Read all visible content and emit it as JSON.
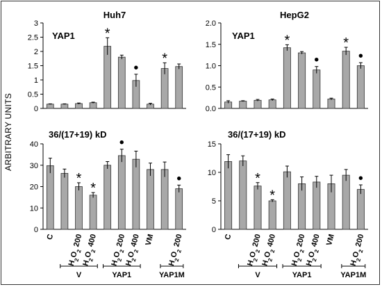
{
  "y_axis_label": "ARBITRARY UNITS",
  "colors": {
    "bar_fill": "#a8a8a8",
    "bar_stroke": "#333333",
    "axis": "#000000"
  },
  "categories": [
    "C",
    "",
    "H2O2 200",
    "H2O2 400",
    "",
    "H2O2 200",
    "H2O2 400",
    "VM",
    "",
    "H2O2 200"
  ],
  "category_parts": [
    {
      "base": "C",
      "sub": "",
      "tail": ""
    },
    {
      "base": "",
      "sub": "",
      "tail": ""
    },
    {
      "base": "H",
      "sub": "2",
      "mid": "O",
      "sub2": "2",
      "tail": " 200"
    },
    {
      "base": "H",
      "sub": "2",
      "mid": "O",
      "sub2": "2",
      "tail": " 400"
    },
    {
      "base": "",
      "sub": "",
      "tail": ""
    },
    {
      "base": "H",
      "sub": "2",
      "mid": "O",
      "sub2": "2",
      "tail": " 200"
    },
    {
      "base": "H",
      "sub": "2",
      "mid": "O",
      "sub2": "2",
      "tail": " 400"
    },
    {
      "base": "VM",
      "sub": "",
      "tail": ""
    },
    {
      "base": "",
      "sub": "",
      "tail": ""
    },
    {
      "base": "H",
      "sub": "2",
      "mid": "O",
      "sub2": "2",
      "tail": " 200"
    }
  ],
  "groups": [
    {
      "label": "V",
      "from": 1,
      "to": 3
    },
    {
      "label": "YAP1",
      "from": 4,
      "to": 6
    },
    {
      "label": "YAP1M",
      "from": 8,
      "to": 9
    }
  ],
  "chart_data": [
    {
      "type": "bar",
      "title": "Huh7",
      "label": "YAP1",
      "ylim": [
        0,
        3
      ],
      "yticks": [
        "0",
        "0.5",
        "1",
        "1.5",
        "2",
        "2.5",
        "3"
      ],
      "ytick_values": [
        0,
        0.5,
        1,
        1.5,
        2,
        2.5,
        3
      ],
      "values": [
        0.15,
        0.15,
        0.17,
        0.2,
        2.18,
        1.8,
        0.98,
        0.15,
        1.4,
        1.47
      ],
      "errors": [
        0.01,
        0.01,
        0.02,
        0.02,
        0.3,
        0.07,
        0.22,
        0.03,
        0.2,
        0.09
      ],
      "markers": [
        "",
        "",
        "",
        "",
        "*",
        "",
        "•",
        "",
        "*",
        ""
      ]
    },
    {
      "type": "bar",
      "title": "HepG2",
      "label": "YAP1",
      "ylim": [
        0,
        2
      ],
      "yticks": [
        "0.0",
        "0.5",
        "1.0",
        "1.5",
        "2.0"
      ],
      "ytick_values": [
        0,
        0.5,
        1,
        1.5,
        2
      ],
      "values": [
        0.15,
        0.17,
        0.19,
        0.2,
        1.42,
        1.3,
        0.9,
        0.22,
        1.34,
        1.0
      ],
      "errors": [
        0.03,
        0.01,
        0.02,
        0.02,
        0.07,
        0.03,
        0.08,
        0.02,
        0.09,
        0.07
      ],
      "markers": [
        "",
        "",
        "",
        "",
        "*",
        "",
        "•",
        "",
        "*",
        "•"
      ]
    },
    {
      "type": "bar",
      "label": "36/(17+19) kD",
      "ylim": [
        0,
        40
      ],
      "yticks": [
        "0",
        "10",
        "20",
        "30",
        "40"
      ],
      "ytick_values": [
        0,
        10,
        20,
        30,
        40
      ],
      "values": [
        29.8,
        26.2,
        20.0,
        16.0,
        30.0,
        34.5,
        32.8,
        28.0,
        28.0,
        19.0
      ],
      "errors": [
        3.5,
        2.0,
        1.8,
        1.2,
        1.7,
        3.0,
        3.8,
        3.0,
        3.5,
        1.7
      ],
      "markers": [
        "",
        "",
        "*",
        "*",
        "",
        "•",
        "",
        "",
        "",
        "•"
      ]
    },
    {
      "type": "bar",
      "label": "36/(17+19) kD",
      "ylim": [
        0,
        15
      ],
      "yticks": [
        "0",
        "5",
        "10",
        "15"
      ],
      "ytick_values": [
        0,
        5,
        10,
        15
      ],
      "values": [
        11.9,
        12.0,
        7.6,
        5.0,
        10.1,
        8.0,
        8.3,
        8.0,
        9.5,
        7.0
      ],
      "errors": [
        1.2,
        0.9,
        0.6,
        0.2,
        1.0,
        1.2,
        1.0,
        1.5,
        1.0,
        0.8
      ],
      "markers": [
        "",
        "",
        "*",
        "*",
        "",
        "",
        "",
        "",
        "",
        "•"
      ]
    }
  ]
}
